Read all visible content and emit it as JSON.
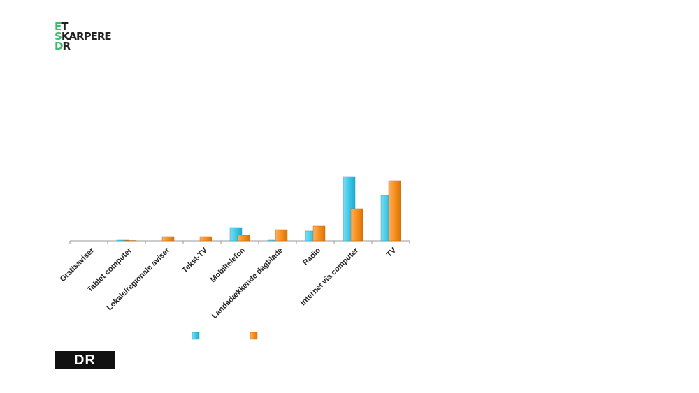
{
  "logo": [
    "ET",
    "SKARPERE",
    "DR"
  ],
  "footer_logo": "DR",
  "chart_data": {
    "type": "bar",
    "categories": [
      "Gratisaviser",
      "Tablet computer",
      "Lokale/regionale aviser",
      "Tekst-TV",
      "Mobiltelefon",
      "Landsdækkende dagblade",
      "Radio",
      "Internet via computer",
      "TV"
    ],
    "series": [
      {
        "color": "#3ec8e8",
        "values": [
          0,
          1,
          0,
          0,
          19,
          1,
          14,
          92,
          65
        ]
      },
      {
        "color": "#f7901e",
        "values": [
          0,
          0.5,
          6,
          6,
          8,
          16,
          21,
          46,
          86
        ]
      }
    ],
    "ylim": [
      0,
      100
    ]
  }
}
